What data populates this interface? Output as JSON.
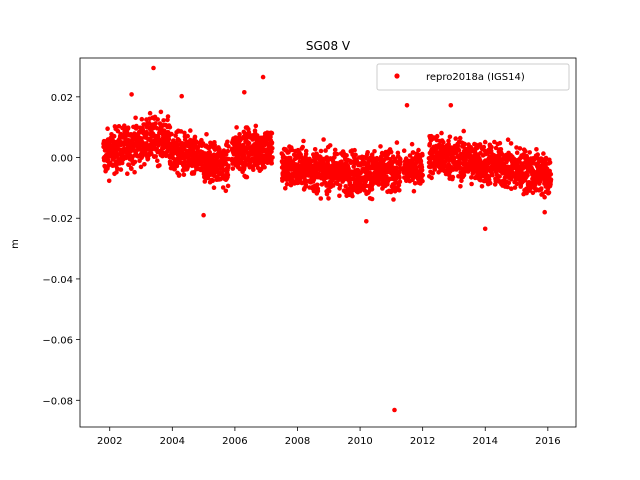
{
  "chart_data": {
    "type": "scatter",
    "title": "SG08 V",
    "xlabel": "",
    "ylabel": "m",
    "xlim": [
      2001.05,
      2016.9
    ],
    "ylim": [
      -0.0888,
      0.0328
    ],
    "xticks": [
      2002,
      2004,
      2006,
      2008,
      2010,
      2012,
      2014,
      2016
    ],
    "xtick_labels": [
      "2002",
      "2004",
      "2006",
      "2008",
      "2010",
      "2012",
      "2014",
      "2016"
    ],
    "yticks": [
      0.02,
      0.0,
      -0.02,
      -0.04,
      -0.06,
      -0.08
    ],
    "ytick_labels": [
      "0.02",
      "0.00",
      "−0.02",
      "−0.04",
      "−0.06",
      "−0.08"
    ],
    "grid": false,
    "legend_position": "top-right",
    "marker_color": "#ff0000",
    "series": [
      {
        "name": "repro2018a (IGS14)",
        "segments": [
          {
            "start": 2001.8,
            "end": 2003.3,
            "level_start": 0.001,
            "level_end": 0.006,
            "spread": 0.005
          },
          {
            "start": 2003.3,
            "end": 2003.9,
            "level_start": 0.006,
            "level_end": 0.006,
            "spread": 0.005
          },
          {
            "start": 2003.9,
            "end": 2005.8,
            "level_start": 0.002,
            "level_end": -0.003,
            "spread": 0.005
          },
          {
            "start": 2005.9,
            "end": 2007.2,
            "level_start": 0.002,
            "level_end": 0.003,
            "spread": 0.005
          },
          {
            "start": 2007.5,
            "end": 2009.5,
            "level_start": -0.003,
            "level_end": -0.005,
            "spread": 0.005
          },
          {
            "start": 2009.5,
            "end": 2011.3,
            "level_start": -0.005,
            "level_end": -0.005,
            "spread": 0.005
          },
          {
            "start": 2011.4,
            "end": 2012.0,
            "level_start": -0.004,
            "level_end": -0.003,
            "spread": 0.004
          },
          {
            "start": 2012.2,
            "end": 2014.0,
            "level_start": 0.001,
            "level_end": -0.002,
            "spread": 0.005
          },
          {
            "start": 2014.0,
            "end": 2016.1,
            "level_start": -0.002,
            "level_end": -0.006,
            "spread": 0.005
          }
        ],
        "points": [
          {
            "x": 2003.4,
            "y": 0.0295
          },
          {
            "x": 2006.3,
            "y": 0.0215
          },
          {
            "x": 2006.9,
            "y": 0.0265
          },
          {
            "x": 2004.3,
            "y": 0.0202
          },
          {
            "x": 2002.7,
            "y": 0.0208
          },
          {
            "x": 2012.9,
            "y": 0.0172
          },
          {
            "x": 2011.5,
            "y": 0.0172
          },
          {
            "x": 2011.1,
            "y": -0.0832
          },
          {
            "x": 2014.0,
            "y": -0.0235
          },
          {
            "x": 2005.0,
            "y": -0.019
          },
          {
            "x": 2010.2,
            "y": -0.021
          },
          {
            "x": 2015.9,
            "y": -0.018
          }
        ]
      }
    ]
  }
}
